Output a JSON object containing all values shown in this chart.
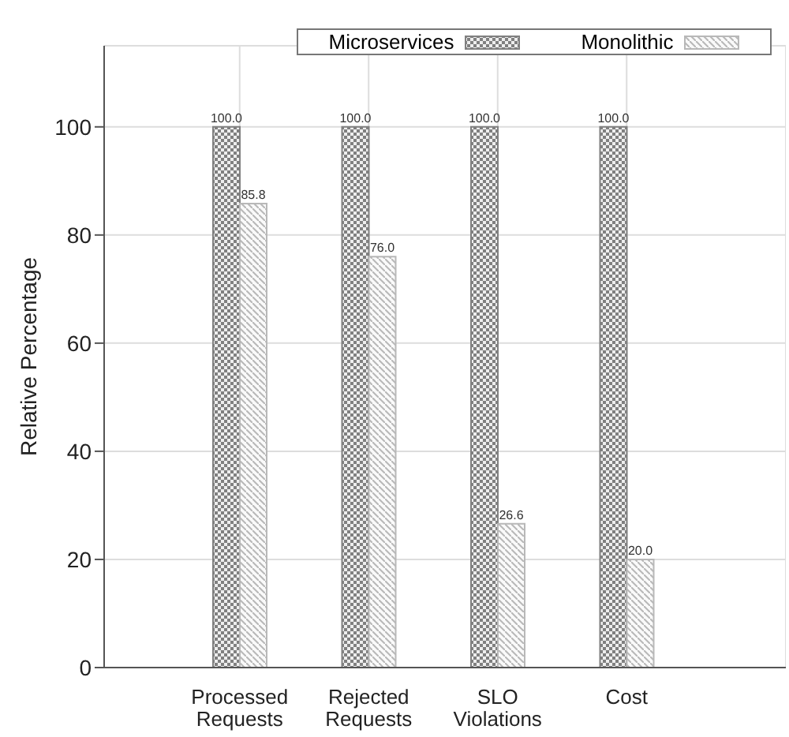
{
  "chart_data": {
    "type": "bar",
    "ylabel": "Relative Percentage",
    "categories": [
      "Processed Requests",
      "Rejected Requests",
      "SLO Violations",
      "Cost"
    ],
    "series": [
      {
        "name": "Microservices",
        "color": "#808080",
        "values": [
          100,
          100,
          100,
          100
        ],
        "value_labels": [
          "100.0",
          "100.0",
          "100.0",
          "100.0"
        ]
      },
      {
        "name": "Monolithic",
        "color": "#b8b8b8",
        "values": [
          85.8,
          76,
          26.6,
          20
        ],
        "value_labels": [
          "85.8",
          "76.0",
          "26.6",
          "20.0"
        ]
      }
    ],
    "ylim": [
      0,
      115
    ],
    "yticks": [
      0,
      20,
      40,
      60,
      80,
      100
    ],
    "grid": true,
    "legend": "top"
  }
}
